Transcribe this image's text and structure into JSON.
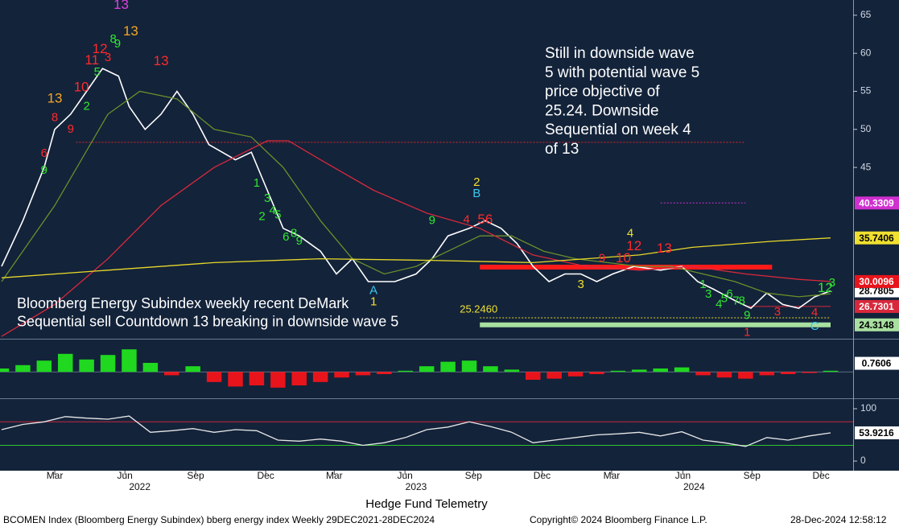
{
  "chart_data": [
    {
      "type": "line",
      "xlim": [
        0,
        156
      ],
      "ylim": [
        22.6,
        67
      ],
      "yticks": [
        45,
        50,
        55,
        60,
        65
      ],
      "annotation": [
        "Still in downside wave",
        "5 with potential wave 5",
        "price objective of",
        "25.24.  Downside",
        "Sequential on week 4",
        "of 13"
      ],
      "note": [
        "Bloomberg Energy Subindex weekly recent DeMark",
        "Sequential sell Countdown 13 breaking in downside wave 5"
      ],
      "series": [
        {
          "name": "Price",
          "color": "#ffffff",
          "tag": true,
          "tag_bg": "#ffffff",
          "tag_fg": "#000000",
          "x": [
            0,
            4,
            8,
            10,
            13,
            16,
            19,
            22,
            24,
            27,
            30,
            33,
            36,
            39,
            44,
            47,
            50,
            53,
            56,
            60,
            63,
            66,
            69,
            74,
            78,
            81,
            84,
            88,
            91,
            94,
            97,
            100,
            103,
            106,
            109,
            112,
            115,
            119,
            124,
            128,
            131,
            134,
            138,
            141,
            144,
            147,
            150,
            153,
            156
          ],
          "values": [
            32,
            38,
            45,
            50,
            52,
            55,
            58,
            57,
            53,
            50,
            52,
            55,
            52,
            48,
            46,
            47,
            42,
            37,
            36,
            34,
            31,
            33,
            30,
            30,
            31,
            33,
            36,
            37,
            38,
            37,
            35,
            32,
            30,
            31,
            31,
            30,
            31,
            32,
            31.5,
            32,
            30,
            29,
            27.5,
            26.5,
            28.5,
            27,
            26.5,
            28,
            28.7805
          ]
        },
        {
          "name": "MA fast",
          "color": "#6a8f2a",
          "tag": false,
          "x": [
            0,
            10,
            20,
            26,
            33,
            40,
            47,
            53,
            60,
            66,
            72,
            78,
            84,
            90,
            96,
            102,
            108,
            114,
            120,
            126,
            132,
            138,
            144,
            150,
            156
          ],
          "values": [
            30,
            40,
            52,
            55,
            54,
            50,
            49,
            45,
            38,
            33,
            31,
            32,
            34,
            36,
            36,
            34,
            33,
            32.5,
            32,
            32,
            31,
            30,
            28.5,
            28,
            28.4
          ]
        },
        {
          "name": "MA medium",
          "color": "#d8283c",
          "tag": true,
          "tag_bg": "#e8141b",
          "tag_fg": "#ffffff",
          "x": [
            0,
            10,
            20,
            30,
            40,
            50,
            54,
            60,
            70,
            80,
            90,
            100,
            110,
            120,
            130,
            140,
            150,
            156
          ],
          "values": [
            22.8,
            27,
            33,
            40,
            45,
            48.5,
            48.5,
            46,
            42,
            39,
            37,
            33.5,
            32,
            31.5,
            32,
            31,
            30.3,
            30.0096
          ]
        },
        {
          "name": "MA slow",
          "color": "#e8d82a",
          "tag": true,
          "tag_bg": "#f0e030",
          "tag_fg": "#000000",
          "x": [
            0,
            20,
            40,
            60,
            80,
            100,
            120,
            130,
            145,
            156
          ],
          "values": [
            30.5,
            31.5,
            32.5,
            33,
            32.8,
            32.5,
            33.5,
            34.5,
            35.3,
            35.7406
          ]
        }
      ],
      "levels": [
        {
          "value": 48.3,
          "x": [
            14,
            140
          ],
          "color": "#e0262e",
          "style": "dotted"
        },
        {
          "value": 40.3309,
          "x": [
            124,
            140
          ],
          "color": "#d030d0",
          "style": "dotted",
          "tag": true,
          "tag_fg": "#ffffff"
        },
        {
          "value": 31.9,
          "x": [
            90,
            145
          ],
          "color": "#ff1a1a",
          "style": "thick"
        },
        {
          "value": 26.7301,
          "x": [
            140,
            156
          ],
          "color": "#d8283c",
          "style": "thin",
          "tag": true,
          "tag_fg": "#ffffff"
        },
        {
          "value": 25.246,
          "label": "25.2460",
          "x": [
            90,
            156
          ],
          "color": "#e8d82a",
          "style": "dotted"
        },
        {
          "value": 24.3148,
          "x": [
            90,
            156
          ],
          "color": "#a8e0a0",
          "style": "thick",
          "tag": true,
          "tag_fg": "#000000"
        }
      ],
      "counts": [
        {
          "x": 10,
          "y": 54,
          "text": "13",
          "color": "#f5a623"
        },
        {
          "x": 10,
          "y": 51.5,
          "text": "8",
          "color": "#ff2a2a"
        },
        {
          "x": 8,
          "y": 44.6,
          "text": "9",
          "color": "#30e830"
        },
        {
          "x": 8,
          "y": 46.8,
          "text": "6",
          "color": "#ff2a2a"
        },
        {
          "x": 13,
          "y": 50,
          "text": "9",
          "color": "#ff2a2a"
        },
        {
          "x": 15,
          "y": 55.5,
          "text": "10",
          "color": "#ff2a2a"
        },
        {
          "x": 16,
          "y": 53,
          "text": "2",
          "color": "#30e830"
        },
        {
          "x": 17,
          "y": 59,
          "text": "11",
          "color": "#ff2a2a"
        },
        {
          "x": 18,
          "y": 57.5,
          "text": "5",
          "color": "#30e830"
        },
        {
          "x": 18.5,
          "y": 60.5,
          "text": "12",
          "color": "#ff2a2a"
        },
        {
          "x": 20,
          "y": 59.4,
          "text": "3",
          "color": "#ff2a2a"
        },
        {
          "x": 21,
          "y": 61.8,
          "text": "8",
          "color": "#30e830"
        },
        {
          "x": 21.8,
          "y": 61.2,
          "text": "9",
          "color": "#30e830"
        },
        {
          "x": 24.3,
          "y": 62.8,
          "text": "13",
          "color": "#f5a623"
        },
        {
          "x": 22.5,
          "y": 66.3,
          "text": "13",
          "color": "#e040e0"
        },
        {
          "x": 30,
          "y": 58.9,
          "text": "13",
          "color": "#ff2a2a"
        },
        {
          "x": 48,
          "y": 42.9,
          "text": "1",
          "color": "#30e830"
        },
        {
          "x": 49,
          "y": 38.5,
          "text": "2",
          "color": "#30e830"
        },
        {
          "x": 50,
          "y": 40.9,
          "text": "3",
          "color": "#30e830"
        },
        {
          "x": 51,
          "y": 39.3,
          "text": "4",
          "color": "#30e830"
        },
        {
          "x": 52,
          "y": 38.7,
          "text": "5",
          "color": "#30e830"
        },
        {
          "x": 53.5,
          "y": 35.8,
          "text": "6",
          "color": "#30e830"
        },
        {
          "x": 55,
          "y": 36.3,
          "text": "8",
          "color": "#30e830"
        },
        {
          "x": 56,
          "y": 35.3,
          "text": "9",
          "color": "#30e830"
        },
        {
          "x": 81,
          "y": 38,
          "text": "9",
          "color": "#30e830"
        },
        {
          "x": 87.5,
          "y": 38.1,
          "text": "4",
          "color": "#ff2a2a"
        },
        {
          "x": 89.4,
          "y": 43,
          "text": "2",
          "color": "#f0e030"
        },
        {
          "x": 89.4,
          "y": 41.5,
          "text": "B",
          "color": "#38c8f0"
        },
        {
          "x": 91,
          "y": 38.1,
          "text": "56",
          "color": "#ff2a2a"
        },
        {
          "x": 70,
          "y": 28.8,
          "text": "A",
          "color": "#38c8f0"
        },
        {
          "x": 70,
          "y": 27.3,
          "text": "1",
          "color": "#f0e030"
        },
        {
          "x": 109,
          "y": 29.6,
          "text": "3",
          "color": "#f0e030"
        },
        {
          "x": 113,
          "y": 33,
          "text": "9",
          "color": "#ff2a2a"
        },
        {
          "x": 117,
          "y": 33,
          "text": "10",
          "color": "#ff2a2a"
        },
        {
          "x": 118.3,
          "y": 36.3,
          "text": "4",
          "color": "#f0e030"
        },
        {
          "x": 119,
          "y": 34.6,
          "text": "12",
          "color": "#ff2a2a"
        },
        {
          "x": 124.7,
          "y": 34.3,
          "text": "13",
          "color": "#ff2a2a"
        },
        {
          "x": 132,
          "y": 29.6,
          "text": "1",
          "color": "#30e830"
        },
        {
          "x": 133,
          "y": 28.3,
          "text": "3",
          "color": "#30e830"
        },
        {
          "x": 135,
          "y": 27,
          "text": "4",
          "color": "#30e830"
        },
        {
          "x": 136,
          "y": 27.7,
          "text": "5",
          "color": "#30e830"
        },
        {
          "x": 137,
          "y": 28.3,
          "text": "6",
          "color": "#30e830"
        },
        {
          "x": 138.2,
          "y": 27.4,
          "text": "7",
          "color": "#30e830"
        },
        {
          "x": 139.3,
          "y": 27.4,
          "text": "8",
          "color": "#30e830"
        },
        {
          "x": 140.3,
          "y": 25.5,
          "text": "9",
          "color": "#30e830"
        },
        {
          "x": 140.3,
          "y": 23.3,
          "text": "1",
          "color": "#ff2a2a"
        },
        {
          "x": 146,
          "y": 26,
          "text": "3",
          "color": "#ff2a2a"
        },
        {
          "x": 153,
          "y": 25.9,
          "text": "4",
          "color": "#ff2a2a"
        },
        {
          "x": 153,
          "y": 24.1,
          "text": "C",
          "color": "#38c8f0"
        },
        {
          "x": 155,
          "y": 29.1,
          "text": "12",
          "color": "#30e830"
        },
        {
          "x": 156.3,
          "y": 29.8,
          "text": "3",
          "color": "#30e830"
        }
      ]
    },
    {
      "type": "bar",
      "xlim": [
        0,
        156
      ],
      "ylim": [
        -2.2,
        2.8
      ],
      "up_color": "#1fd81f",
      "down_color": "#e8141b",
      "x": [
        0,
        4,
        8,
        12,
        16,
        20,
        24,
        28,
        32,
        36,
        40,
        44,
        48,
        52,
        56,
        60,
        64,
        68,
        72,
        76,
        80,
        84,
        88,
        92,
        96,
        100,
        104,
        108,
        112,
        116,
        120,
        124,
        128,
        132,
        136,
        140,
        144,
        148,
        152,
        156
      ],
      "values": [
        0.3,
        0.6,
        1.0,
        1.6,
        1.1,
        1.5,
        2.0,
        0.8,
        -0.3,
        0.5,
        -0.9,
        -1.3,
        -1.2,
        -1.4,
        -1.2,
        -0.9,
        -0.5,
        -0.3,
        -0.2,
        0.1,
        0.5,
        0.9,
        1.0,
        0.5,
        0.2,
        -0.7,
        -0.6,
        -0.4,
        -0.2,
        0.1,
        0.2,
        0.3,
        0.4,
        -0.3,
        -0.5,
        -0.6,
        -0.3,
        -0.2,
        -0.1,
        0.1
      ],
      "last_value": 0.7606
    },
    {
      "type": "line",
      "xlim": [
        0,
        156
      ],
      "ylim": [
        -13.8,
        115.4
      ],
      "yticks": [
        0,
        100
      ],
      "levels": [
        {
          "value": 75,
          "color": "#c8283c"
        },
        {
          "value": 30,
          "color": "#2ec82e"
        }
      ],
      "series": [
        {
          "name": "Oscillator",
          "color": "#e8e8e8",
          "tag": true,
          "tag_bg": "#ffffff",
          "tag_fg": "#000000",
          "x": [
            0,
            4,
            8,
            12,
            16,
            20,
            24,
            28,
            32,
            36,
            40,
            44,
            48,
            52,
            56,
            60,
            64,
            68,
            72,
            76,
            80,
            84,
            88,
            92,
            96,
            100,
            104,
            108,
            112,
            116,
            120,
            124,
            128,
            132,
            136,
            140,
            144,
            148,
            152,
            156
          ],
          "values": [
            60,
            70,
            75,
            85,
            82,
            80,
            86,
            55,
            58,
            62,
            55,
            60,
            58,
            40,
            38,
            42,
            38,
            30,
            35,
            45,
            60,
            65,
            75,
            66,
            55,
            35,
            40,
            45,
            50,
            52,
            55,
            48,
            56,
            40,
            35,
            28,
            45,
            40,
            48,
            53.9216
          ]
        }
      ],
      "xticks": [
        {
          "value": 10,
          "label": "Mar"
        },
        {
          "value": 23.2,
          "label": "Jun"
        },
        {
          "value": 36.5,
          "label": "Sep"
        },
        {
          "value": 49.7,
          "label": "Dec"
        },
        {
          "value": 62.6,
          "label": "Mar"
        },
        {
          "value": 75.9,
          "label": "Jun"
        },
        {
          "value": 88.8,
          "label": "Sep"
        },
        {
          "value": 101.7,
          "label": "Dec"
        },
        {
          "value": 114.8,
          "label": "Mar"
        },
        {
          "value": 128.2,
          "label": "Jun"
        },
        {
          "value": 141.2,
          "label": "Sep"
        },
        {
          "value": 154.2,
          "label": "Dec"
        }
      ],
      "year_ticks": [
        {
          "value": 26,
          "label": "2022"
        },
        {
          "value": 78,
          "label": "2023"
        },
        {
          "value": 130.3,
          "label": "2024"
        }
      ]
    }
  ],
  "footer": {
    "center": "Hedge Fund Telemetry",
    "left": "BCOMEN Index (Bloomberg Energy Subindex) bberg energy index  Weekly 29DEC2021-28DEC2024",
    "copyright": "Copyright© 2024 Bloomberg Finance L.P.",
    "timestamp": "28-Dec-2024 12:58:12"
  }
}
